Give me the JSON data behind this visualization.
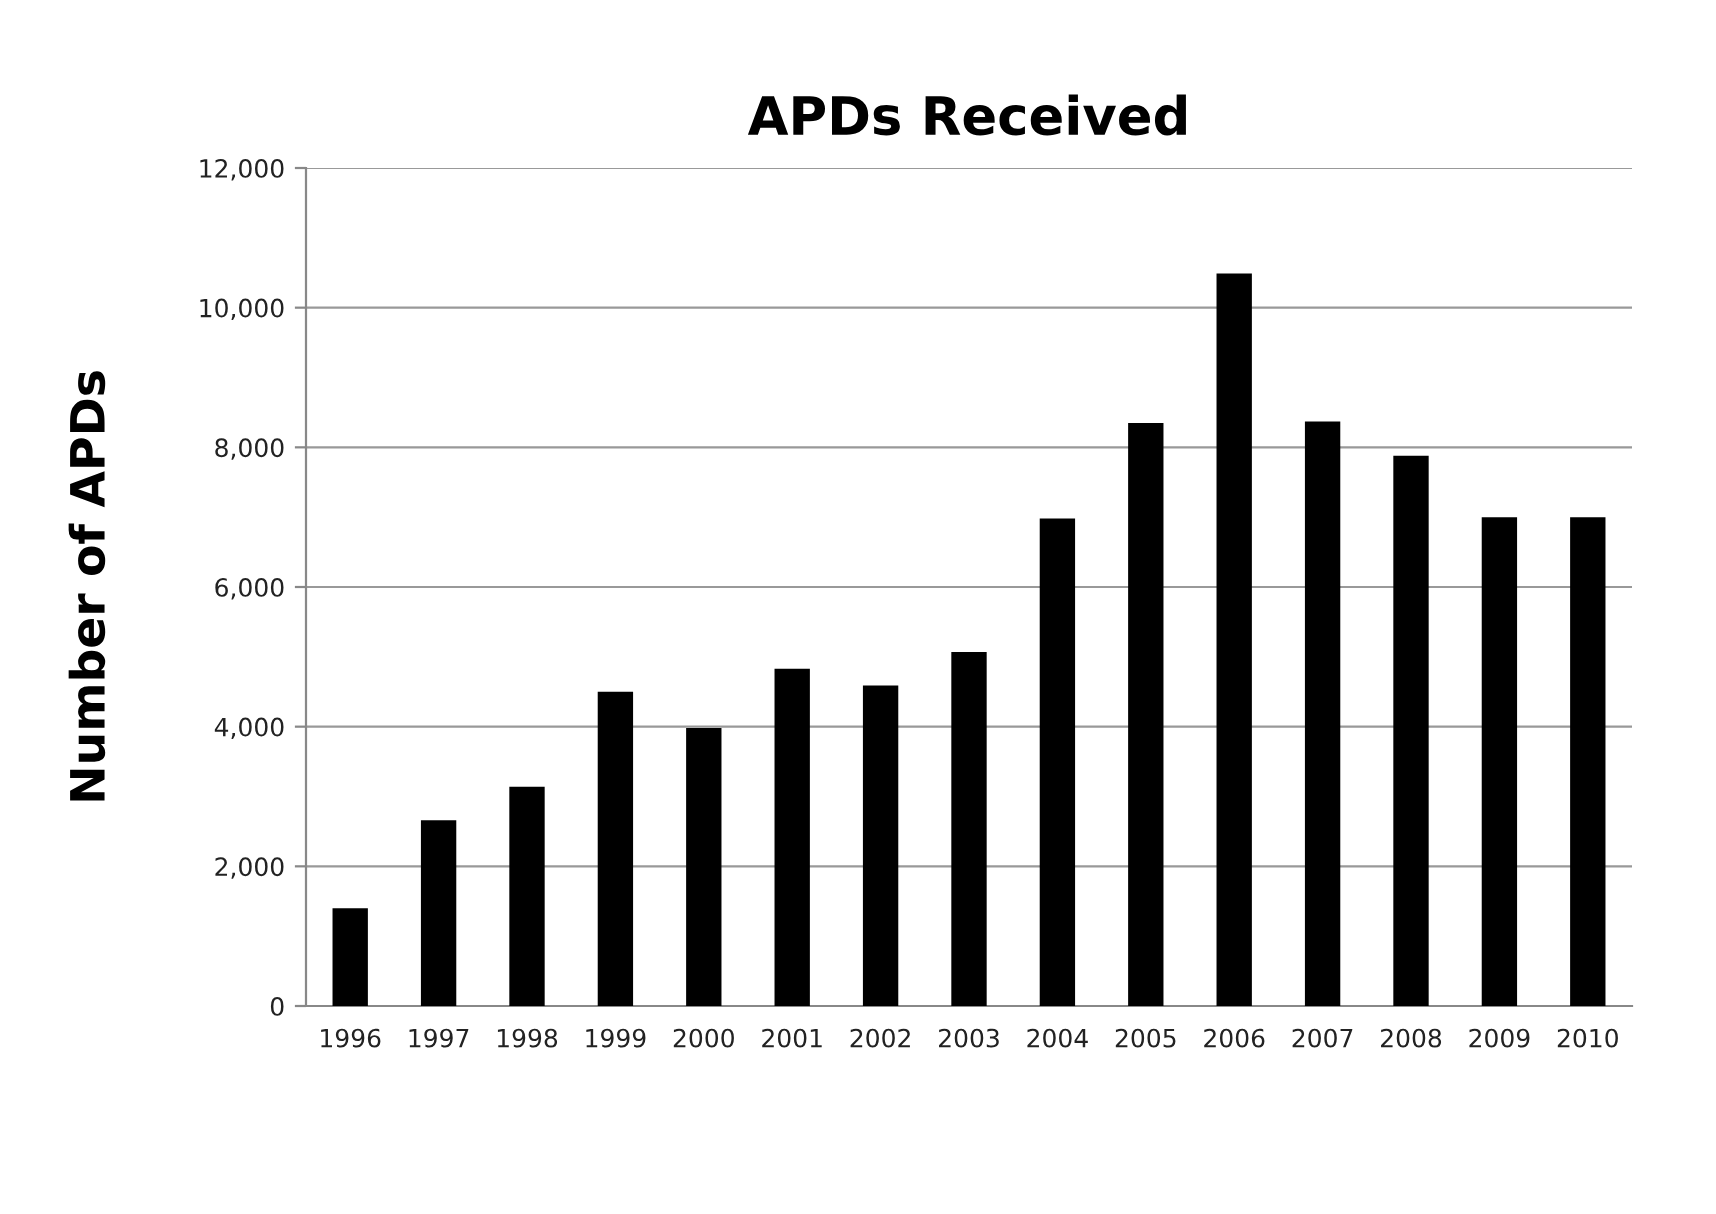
{
  "chart_data": {
    "type": "bar",
    "title": "APDs Received",
    "ylabel": "Number of APDs",
    "categories": [
      "1996",
      "1997",
      "1998",
      "1999",
      "2000",
      "2001",
      "2002",
      "2003",
      "2004",
      "2005",
      "2006",
      "2007",
      "2008",
      "2009",
      "2010"
    ],
    "values": [
      1400,
      2660,
      3140,
      4500,
      3980,
      4830,
      4590,
      5070,
      6980,
      8350,
      10490,
      8370,
      7880,
      7000,
      7000
    ],
    "color": "#000000",
    "ylim": [
      0,
      12000
    ],
    "yticks": [
      {
        "value": 0,
        "label": "0"
      },
      {
        "value": 2000,
        "label": "2,000"
      },
      {
        "value": 4000,
        "label": "4,000"
      },
      {
        "value": 6000,
        "label": "6,000"
      },
      {
        "value": 8000,
        "label": "8,000"
      },
      {
        "value": 10000,
        "label": "10,000"
      },
      {
        "value": 12000,
        "label": "12,000"
      }
    ],
    "grid": "y",
    "legend": false
  }
}
